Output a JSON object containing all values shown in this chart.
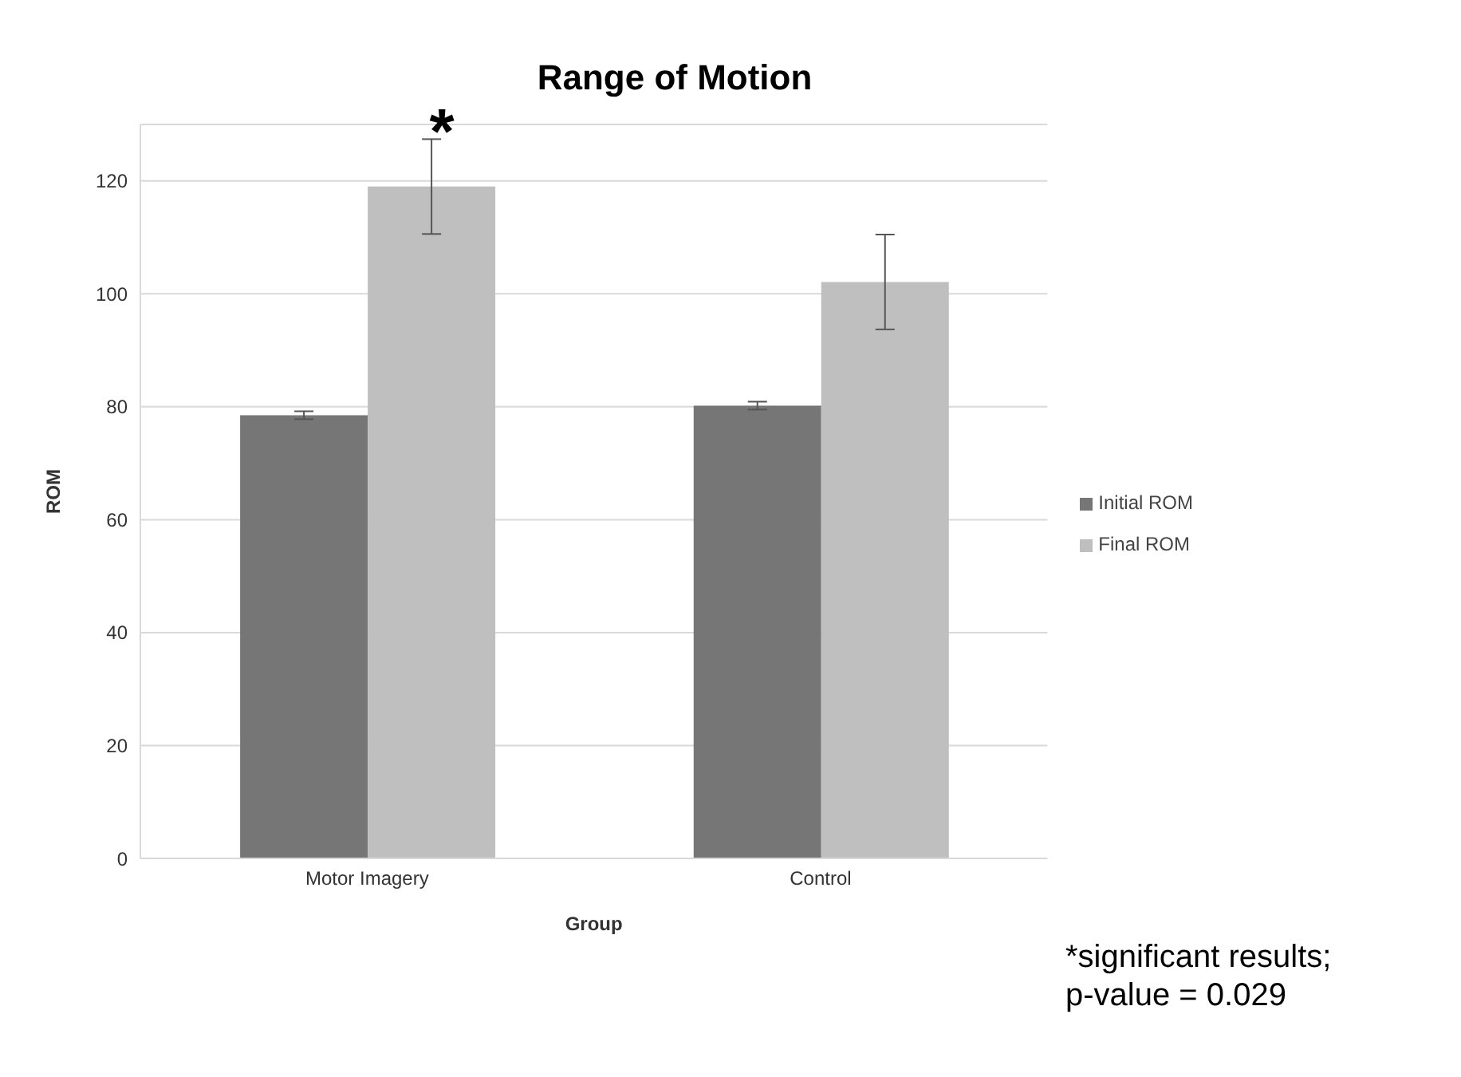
{
  "chart_data": {
    "type": "bar",
    "title": "Range of Motion",
    "xlabel": "Group",
    "ylabel": "ROM",
    "categories": [
      "Motor Imagery",
      "Control"
    ],
    "series": [
      {
        "name": "Initial ROM",
        "color": "#767676",
        "values": [
          78.5,
          80.2
        ],
        "errors": [
          0.7,
          0.7
        ]
      },
      {
        "name": "Final ROM",
        "color": "#bfbfbf",
        "values": [
          119,
          102.1
        ],
        "errors": [
          8.4,
          8.4
        ]
      }
    ],
    "ylim": [
      0,
      130
    ],
    "yticks": [
      0,
      20,
      40,
      60,
      80,
      100,
      120
    ],
    "grid": "y",
    "legend": "right",
    "annotations": [
      "*",
      "*significant results;\np-value = 0.029"
    ]
  }
}
